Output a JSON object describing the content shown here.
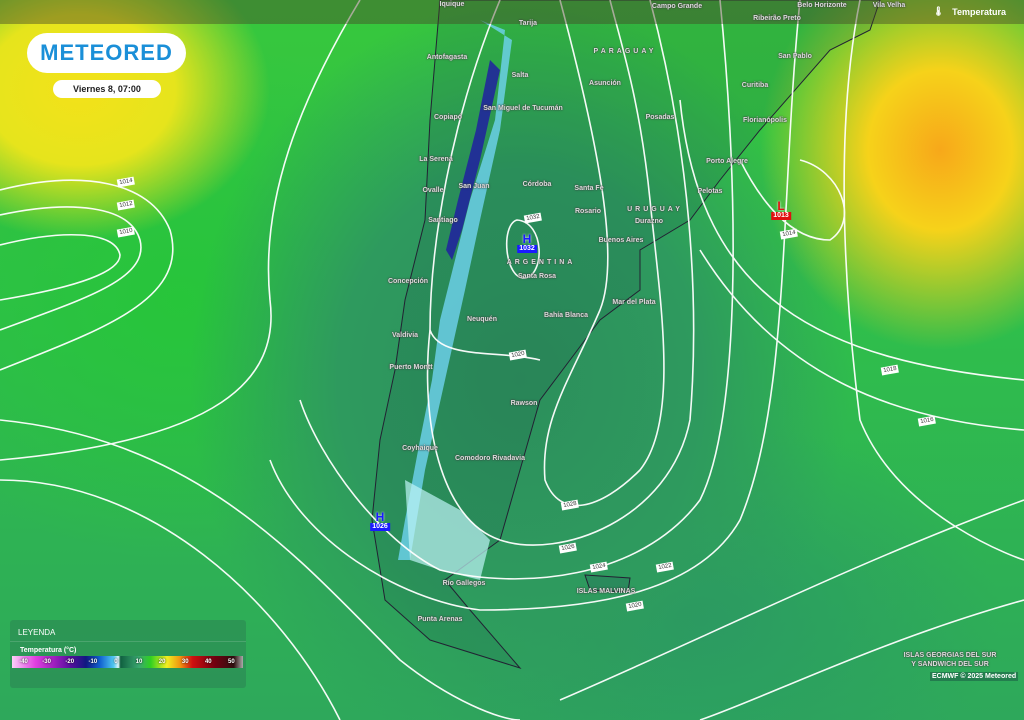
{
  "brand": {
    "logo": "METEORED",
    "date": "Viernes 8, 07:00"
  },
  "layer": {
    "icon": "thermometer-icon",
    "label": "Temperatura"
  },
  "legend": {
    "title": "LEYENDA",
    "subtitle": "Temperatura (°C)",
    "ticks": [
      "-40",
      "-30",
      "-20",
      "-10",
      "0",
      "10",
      "20",
      "30",
      "40",
      "50"
    ]
  },
  "credit": "ECMWF © 2025 Meteored",
  "cities": [
    "Iquique",
    "Tarija",
    "Campo Grande",
    "Belo Horizonte",
    "Vila Velha",
    "Ribeirão Preto",
    "Antofagasta",
    "Salta",
    "Asunción",
    "San Pablo",
    "Curitiba",
    "Copiapó",
    "San Miguel de Tucumán",
    "Posadas",
    "Florianópolis",
    "La Serena",
    "Ovalle",
    "San Juan",
    "Córdoba",
    "Santa Fe",
    "Porto Alegre",
    "Pelotas",
    "Rosario",
    "Durazno",
    "Santiago",
    "Buenos Aires",
    "Santa Rosa",
    "Concepción",
    "Mar del Plata",
    "Neuquén",
    "Bahía Blanca",
    "Valdivia",
    "Puerto Montt",
    "Rawson",
    "Coyhaique",
    "Comodoro Rivadavia",
    "Río Gallegos",
    "Punta Arenas"
  ],
  "countries": [
    "PARAGUAY",
    "URUGUAY",
    "ARGENTINA"
  ],
  "regions": [
    "ISLAS MALVINAS",
    "ISLAS GEORGIAS DEL SUR",
    "Y SANDWICH DEL SUR"
  ],
  "isobar_labels": [
    "1014",
    "1012",
    "1010",
    "1032",
    "1020",
    "1028",
    "1026",
    "1024",
    "1022",
    "1020",
    "1018",
    "1016",
    "1014"
  ],
  "pressure_centers": [
    {
      "type": "H",
      "value": "1032",
      "color": "#1a1aff"
    },
    {
      "type": "H",
      "value": "1026",
      "color": "#1a1aff"
    },
    {
      "type": "L",
      "value": "1013",
      "color": "#e01010"
    }
  ]
}
